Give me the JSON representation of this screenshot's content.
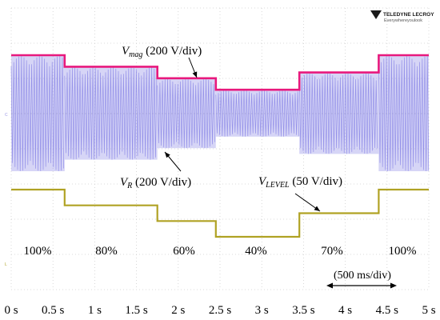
{
  "branding": {
    "logo_text": "TELEDYNE LECROY",
    "tagline": "Everywhereyoulook"
  },
  "chart_data": {
    "type": "line",
    "x_unit": "s",
    "xlim": [
      0,
      5
    ],
    "x_ticks": [
      {
        "value": 0,
        "label": "0 s"
      },
      {
        "value": 0.5,
        "label": "0.5 s"
      },
      {
        "value": 1,
        "label": "1 s"
      },
      {
        "value": 1.5,
        "label": "1.5 s"
      },
      {
        "value": 2,
        "label": "2 s"
      },
      {
        "value": 2.5,
        "label": "2.5 s"
      },
      {
        "value": 3,
        "label": "3 s"
      },
      {
        "value": 3.5,
        "label": "3.5 s"
      },
      {
        "value": 4,
        "label": "4 s"
      },
      {
        "value": 4.5,
        "label": "4.5 s"
      },
      {
        "value": 5,
        "label": "5 s"
      }
    ],
    "grid": true,
    "time_scale": "(500 ms/div)",
    "segments": [
      {
        "start": 0,
        "end": 0.64,
        "label": "100%",
        "level": 1.0
      },
      {
        "start": 0.64,
        "end": 1.75,
        "label": "80%",
        "level": 0.8
      },
      {
        "start": 1.75,
        "end": 2.45,
        "label": "60%",
        "level": 0.6
      },
      {
        "start": 2.45,
        "end": 3.45,
        "label": "40%",
        "level": 0.4
      },
      {
        "start": 3.45,
        "end": 4.4,
        "label": "70%",
        "level": 0.7
      },
      {
        "start": 4.4,
        "end": 5.0,
        "label": "100%",
        "level": 1.0
      }
    ],
    "series": [
      {
        "name": "V",
        "sub": "mag",
        "scale": "(200 V/div)",
        "color": "#e8197d",
        "style": "envelope"
      },
      {
        "name": "V",
        "sub": "R",
        "scale": "(200 V/div)",
        "color": "#8a86e6",
        "style": "ac-waveform"
      },
      {
        "name": "V",
        "sub": "LEVEL",
        "scale": "(50 V/div)",
        "color": "#b0a224",
        "style": "step"
      }
    ]
  }
}
